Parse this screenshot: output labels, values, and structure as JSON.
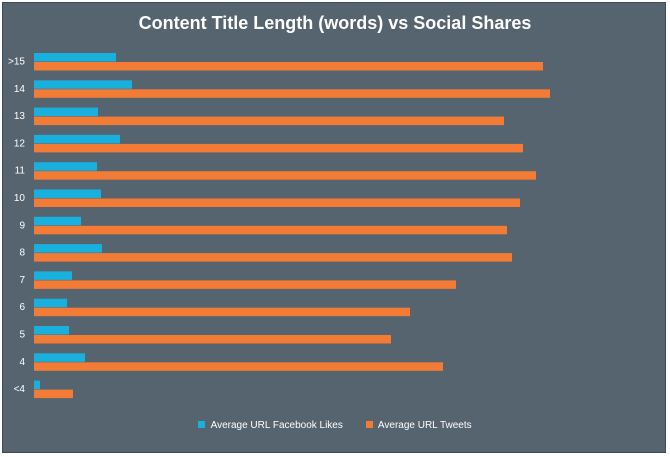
{
  "chart_data": {
    "type": "bar",
    "orientation": "horizontal",
    "title": "Content Title Length (words) vs Social Shares",
    "xlabel": "",
    "ylabel": "",
    "categories": [
      ">15",
      "14",
      "13",
      "12",
      "11",
      "10",
      "9",
      "8",
      "7",
      "6",
      "5",
      "4",
      "<4"
    ],
    "series": [
      {
        "name": "Average URL Facebook Likes",
        "color": "#1ab0dd",
        "values": [
          82,
          98,
          64,
          86,
          63,
          67,
          47,
          68,
          38,
          33,
          35,
          51,
          6
        ]
      },
      {
        "name": "Average URL Tweets",
        "color": "#f27c36",
        "values": [
          509,
          516,
          470,
          489,
          502,
          486,
          473,
          478,
          422,
          376,
          357,
          409,
          39
        ]
      }
    ],
    "xlim": [
      0,
      630
    ],
    "grid": false,
    "legend_position": "bottom"
  }
}
